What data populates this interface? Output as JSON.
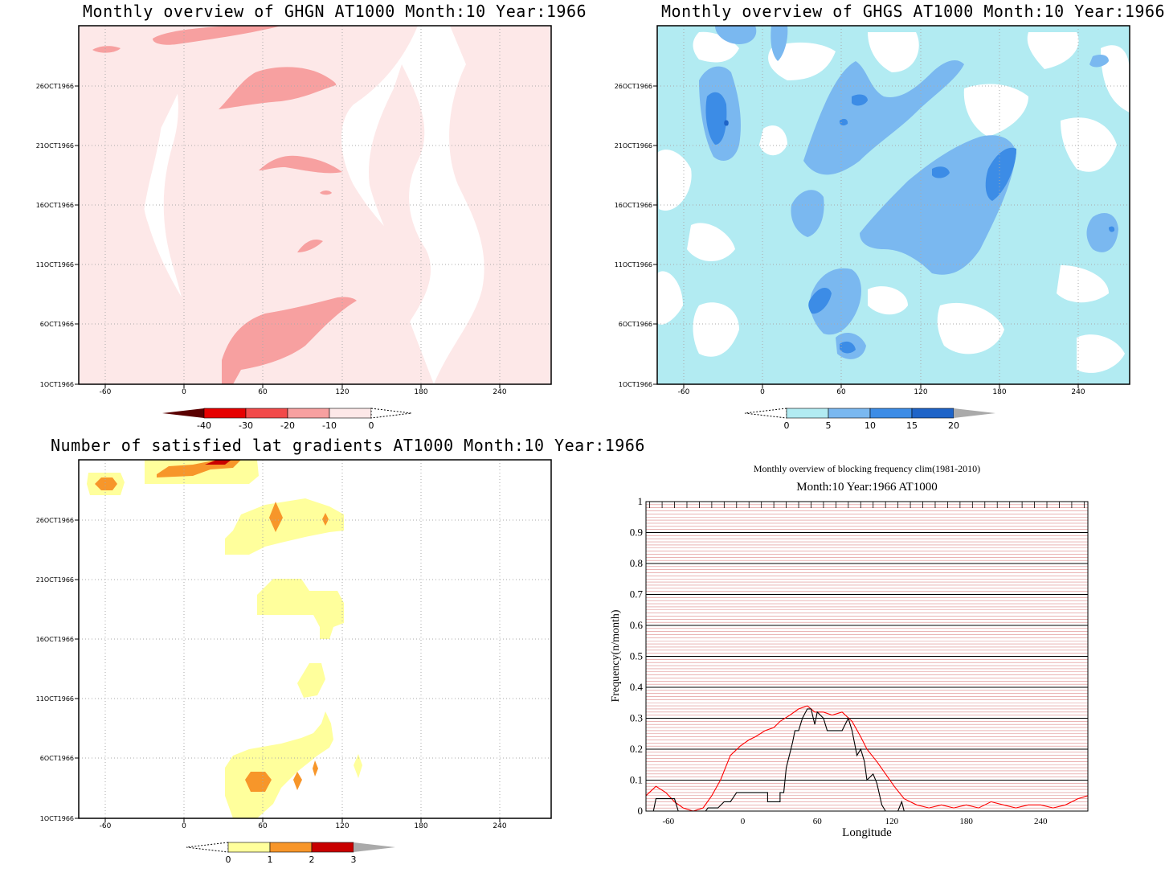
{
  "panels": {
    "ghgn": {
      "title": "Monthly overview of GHGN AT1000 Month:10 Year:1966"
    },
    "ghgs": {
      "title": "Monthly overview of GHGS AT1000 Month:10 Year:1966"
    },
    "lat": {
      "title": "Number of satisfied lat gradients AT1000 Month:10 Year:1966"
    },
    "freq": {
      "title": "Monthly overview of blocking frequency clim(1981-2010)",
      "subtitle": "Month:10 Year:1966  AT1000",
      "xlabel": "Longitude",
      "ylabel": "Frequency(n/month)"
    }
  },
  "map_axes": {
    "xticks": [
      "-60",
      "0",
      "60",
      "120",
      "180",
      "240"
    ],
    "yticks": [
      "1OCT1966",
      "6OCT1966",
      "11OCT1966",
      "16OCT1966",
      "21OCT1966",
      "26OCT1966"
    ]
  },
  "colorbars": {
    "ghgn": {
      "labels": [
        "-40",
        "-30",
        "-20",
        "-10",
        "0"
      ],
      "colors": [
        "#5a0000",
        "#e60000",
        "#f24a4a",
        "#f7a0a0",
        "#fde8e8"
      ]
    },
    "ghgs": {
      "labels": [
        "0",
        "5",
        "10",
        "15",
        "20"
      ],
      "colors": [
        "#b2ebf2",
        "#7ab8f0",
        "#3c8ce6",
        "#1e64c8",
        "#aaaaaa"
      ]
    },
    "lat": {
      "labels": [
        "0",
        "1",
        "2",
        "3"
      ],
      "colors": [
        "#ffff9c",
        "#f7962a",
        "#c80000",
        "#aaaaaa"
      ]
    }
  },
  "chart_data": [
    {
      "type": "line",
      "title": "Monthly overview of blocking frequency clim(1981-2010)",
      "subtitle": "Month:10 Year:1966  AT1000",
      "xlabel": "Longitude",
      "ylabel": "Frequency(n/month)",
      "xlim": [
        -78,
        278
      ],
      "ylim": [
        0,
        1
      ],
      "xticks": [
        -60,
        0,
        60,
        120,
        180,
        240
      ],
      "yticks": [
        0,
        0.1,
        0.2,
        0.3,
        0.4,
        0.5,
        0.6,
        0.7,
        0.8,
        0.9,
        1
      ],
      "grid": true,
      "series": [
        {
          "color": "#ff0000",
          "x": [
            -78,
            -70,
            -62,
            -55,
            -48,
            -40,
            -32,
            -25,
            -18,
            -10,
            -2,
            5,
            10,
            18,
            25,
            30,
            38,
            45,
            52,
            58,
            65,
            72,
            80,
            88,
            95,
            100,
            108,
            115,
            122,
            130,
            140,
            150,
            160,
            170,
            180,
            190,
            200,
            210,
            220,
            230,
            240,
            250,
            260,
            270,
            278
          ],
          "y": [
            0.05,
            0.08,
            0.06,
            0.03,
            0.01,
            0.0,
            0.01,
            0.05,
            0.1,
            0.18,
            0.21,
            0.23,
            0.24,
            0.26,
            0.27,
            0.29,
            0.31,
            0.33,
            0.34,
            0.32,
            0.32,
            0.31,
            0.32,
            0.29,
            0.24,
            0.2,
            0.16,
            0.12,
            0.08,
            0.04,
            0.02,
            0.01,
            0.02,
            0.01,
            0.02,
            0.01,
            0.03,
            0.02,
            0.01,
            0.02,
            0.02,
            0.01,
            0.02,
            0.04,
            0.05
          ]
        },
        {
          "color": "#000000",
          "x": [
            -78,
            -72,
            -70,
            -60,
            -55,
            -52,
            -48,
            -40,
            -30,
            -28,
            -20,
            -15,
            -10,
            -5,
            0,
            10,
            20,
            20,
            25,
            30,
            30,
            33,
            35,
            40,
            42,
            45,
            48,
            52,
            55,
            58,
            60,
            65,
            68,
            72,
            80,
            85,
            88,
            92,
            95,
            98,
            100,
            105,
            108,
            112,
            115,
            118,
            122,
            125,
            128,
            130,
            140,
            150,
            160,
            180,
            200,
            220,
            240,
            260,
            278
          ],
          "y": [
            0.0,
            0.0,
            0.04,
            0.04,
            0.04,
            0.0,
            0.0,
            0.0,
            0.0,
            0.01,
            0.01,
            0.03,
            0.03,
            0.06,
            0.06,
            0.06,
            0.06,
            0.03,
            0.03,
            0.03,
            0.06,
            0.06,
            0.14,
            0.22,
            0.26,
            0.26,
            0.3,
            0.33,
            0.33,
            0.28,
            0.32,
            0.3,
            0.26,
            0.26,
            0.26,
            0.3,
            0.26,
            0.18,
            0.2,
            0.16,
            0.1,
            0.12,
            0.09,
            0.02,
            0.0,
            0.0,
            0.0,
            0.0,
            0.03,
            0.0,
            0.0,
            0.0,
            0.0,
            0.0,
            0.0,
            0.0,
            0.0,
            0.0,
            0.0
          ]
        }
      ]
    }
  ]
}
